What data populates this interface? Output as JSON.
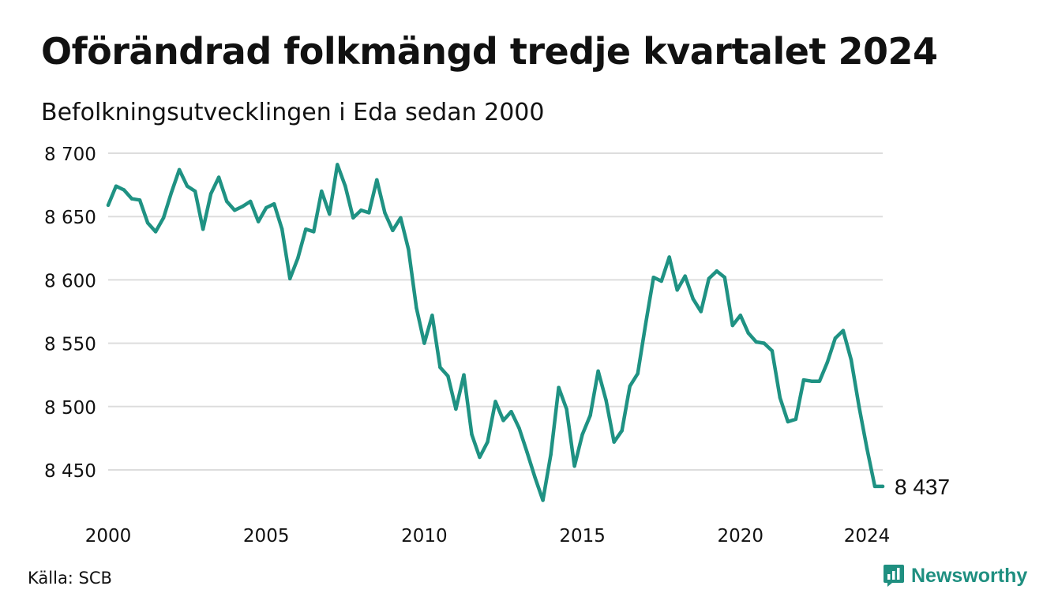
{
  "title": "Oförändrad folkmängd tredje kvartalet 2024",
  "subtitle": "Befolkningsutvecklingen i Eda sedan 2000",
  "source": "Källa: SCB",
  "brand": "Newsworthy",
  "colors": {
    "line": "#1f9283",
    "grid": "#dddddd",
    "text": "#111111",
    "brand": "#1f8f80"
  },
  "chart_data": {
    "type": "line",
    "xlim": [
      2000,
      2024.5
    ],
    "ylim": [
      8420,
      8700
    ],
    "grid": true,
    "x_ticks": [
      2000,
      2005,
      2010,
      2015,
      2020,
      2024
    ],
    "x_tick_labels": [
      "2000",
      "2005",
      "2010",
      "2015",
      "2020",
      "2024"
    ],
    "y_ticks": [
      8450,
      8500,
      8550,
      8600,
      8650,
      8700
    ],
    "y_tick_labels": [
      "8 450",
      "8 500",
      "8 550",
      "8 600",
      "8 650",
      "8 700"
    ],
    "end_label": "8 437",
    "series": [
      {
        "x": [
          2000.0,
          2000.25,
          2000.5,
          2000.75,
          2001.0,
          2001.25,
          2001.5,
          2001.75,
          2002.0,
          2002.25,
          2002.5,
          2002.75,
          2003.0,
          2003.25,
          2003.5,
          2003.75,
          2004.0,
          2004.25,
          2004.5,
          2004.75,
          2005.0,
          2005.25,
          2005.5,
          2005.75,
          2006.0,
          2006.25,
          2006.5,
          2006.75,
          2007.0,
          2007.25,
          2007.5,
          2007.75,
          2008.0,
          2008.25,
          2008.5,
          2008.75,
          2009.0,
          2009.25,
          2009.5,
          2009.75,
          2010.0,
          2010.25,
          2010.5,
          2010.75,
          2011.0,
          2011.25,
          2011.5,
          2011.75,
          2012.0,
          2012.25,
          2012.5,
          2012.75,
          2013.0,
          2013.25,
          2013.5,
          2013.75,
          2014.0,
          2014.25,
          2014.5,
          2014.75,
          2015.0,
          2015.25,
          2015.5,
          2015.75,
          2016.0,
          2016.25,
          2016.5,
          2016.75,
          2017.0,
          2017.25,
          2017.5,
          2017.75,
          2018.0,
          2018.25,
          2018.5,
          2018.75,
          2019.0,
          2019.25,
          2019.5,
          2019.75,
          2020.0,
          2020.25,
          2020.5,
          2020.75,
          2021.0,
          2021.25,
          2021.5,
          2021.75,
          2022.0,
          2022.25,
          2022.5,
          2022.75,
          2023.0,
          2023.25,
          2023.5,
          2023.75,
          2024.0,
          2024.25,
          2024.5
        ],
        "values": [
          8659,
          8674,
          8671,
          8664,
          8663,
          8645,
          8638,
          8649,
          8669,
          8687,
          8674,
          8670,
          8640,
          8668,
          8681,
          8662,
          8655,
          8658,
          8662,
          8646,
          8657,
          8660,
          8640,
          8601,
          8617,
          8640,
          8638,
          8670,
          8652,
          8691,
          8674,
          8649,
          8655,
          8653,
          8679,
          8653,
          8639,
          8649,
          8624,
          8578,
          8550,
          8572,
          8531,
          8524,
          8498,
          8525,
          8478,
          8460,
          8472,
          8504,
          8489,
          8496,
          8483,
          8464,
          8444,
          8426,
          8462,
          8515,
          8498,
          8453,
          8478,
          8493,
          8528,
          8505,
          8472,
          8481,
          8516,
          8526,
          8565,
          8602,
          8599,
          8618,
          8592,
          8603,
          8585,
          8575,
          8601,
          8607,
          8602,
          8564,
          8572,
          8558,
          8551,
          8550,
          8544,
          8507,
          8488,
          8490,
          8521,
          8520,
          8520,
          8535,
          8554,
          8560,
          8537,
          8500,
          8467,
          8437,
          8437
        ]
      }
    ]
  }
}
